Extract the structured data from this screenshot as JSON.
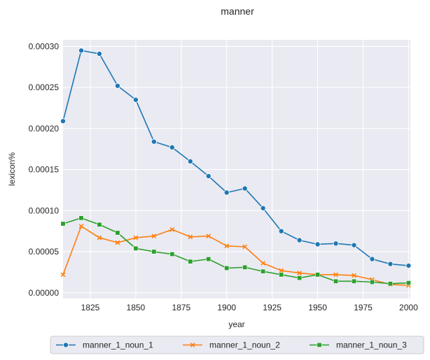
{
  "chart_data": {
    "type": "line",
    "title": "manner",
    "xlabel": "year",
    "ylabel": "lexicon%",
    "xlim": [
      1810,
      2001
    ],
    "ylim": [
      -7e-06,
      0.000308
    ],
    "xticks": [
      1825,
      1850,
      1875,
      1900,
      1925,
      1950,
      1975,
      2000
    ],
    "yticks": [
      0.0,
      5e-05,
      0.0001,
      0.00015,
      0.0002,
      0.00025,
      0.0003
    ],
    "ytick_labels": [
      "0.00000",
      "0.00005",
      "0.00010",
      "0.00015",
      "0.00020",
      "0.00025",
      "0.00030"
    ],
    "grid": true,
    "legend_position": "bottom-center",
    "x": [
      1810,
      1820,
      1830,
      1840,
      1850,
      1860,
      1870,
      1880,
      1890,
      1900,
      1910,
      1920,
      1930,
      1940,
      1950,
      1960,
      1970,
      1980,
      1990,
      2000
    ],
    "series": [
      {
        "name": "manner_1_noun_1",
        "color": "#1f77b4",
        "marker": "circle",
        "values": [
          0.000209,
          0.000295,
          0.000291,
          0.000252,
          0.000235,
          0.000184,
          0.000177,
          0.00016,
          0.000142,
          0.000122,
          0.000127,
          0.000103,
          7.5e-05,
          6.4e-05,
          5.9e-05,
          6e-05,
          5.8e-05,
          4.1e-05,
          3.5e-05,
          3.3e-05
        ]
      },
      {
        "name": "manner_1_noun_2",
        "color": "#ff7f0e",
        "marker": "x",
        "values": [
          2.2e-05,
          8.1e-05,
          6.7e-05,
          6.1e-05,
          6.7e-05,
          6.9e-05,
          7.7e-05,
          6.8e-05,
          6.9e-05,
          5.7e-05,
          5.6e-05,
          3.6e-05,
          2.7e-05,
          2.4e-05,
          2.2e-05,
          2.2e-05,
          2.1e-05,
          1.6e-05,
          1e-05,
          9e-06
        ]
      },
      {
        "name": "manner_1_noun_3",
        "color": "#2ca02c",
        "marker": "square",
        "values": [
          8.4e-05,
          9.1e-05,
          8.3e-05,
          7.3e-05,
          5.4e-05,
          5e-05,
          4.7e-05,
          3.8e-05,
          4.1e-05,
          3e-05,
          3.1e-05,
          2.6e-05,
          2.2e-05,
          1.8e-05,
          2.2e-05,
          1.4e-05,
          1.4e-05,
          1.3e-05,
          1.1e-05,
          1.2e-05
        ]
      }
    ]
  }
}
